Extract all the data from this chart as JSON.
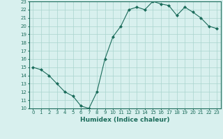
{
  "x": [
    0,
    1,
    2,
    3,
    4,
    5,
    6,
    7,
    8,
    9,
    10,
    11,
    12,
    13,
    14,
    15,
    16,
    17,
    18,
    19,
    20,
    21,
    22,
    23
  ],
  "y": [
    15.0,
    14.7,
    14.0,
    13.0,
    12.0,
    11.5,
    10.3,
    10.0,
    12.0,
    16.0,
    18.7,
    20.0,
    22.0,
    22.3,
    22.0,
    23.0,
    22.7,
    22.5,
    21.3,
    22.3,
    21.7,
    21.0,
    20.0,
    19.7
  ],
  "line_color": "#1a6b5a",
  "marker": "D",
  "marker_size": 2.0,
  "bg_color": "#d8f0ee",
  "grid_color": "#aad4ce",
  "xlabel": "Humidex (Indice chaleur)",
  "ylim": [
    10,
    23
  ],
  "xlim": [
    -0.5,
    23.5
  ],
  "yticks": [
    10,
    11,
    12,
    13,
    14,
    15,
    16,
    17,
    18,
    19,
    20,
    21,
    22,
    23
  ],
  "xticks": [
    0,
    1,
    2,
    3,
    4,
    5,
    6,
    7,
    8,
    9,
    10,
    11,
    12,
    13,
    14,
    15,
    16,
    17,
    18,
    19,
    20,
    21,
    22,
    23
  ],
  "tick_label_fontsize": 5.0,
  "xlabel_fontsize": 6.5,
  "linewidth": 0.8
}
